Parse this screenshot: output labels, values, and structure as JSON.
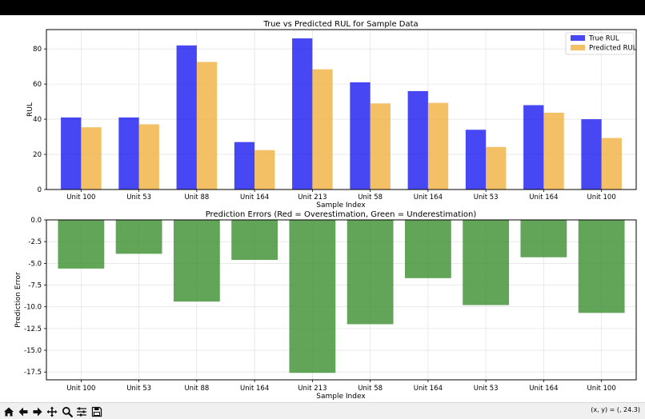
{
  "toolbar": {
    "icons": [
      "home-icon",
      "back-arrow-icon",
      "forward-arrow-icon",
      "pan-icon",
      "zoom-icon",
      "configure-subplots-icon",
      "save-icon"
    ],
    "coords_readout": "(x, y) = (, 24.3)"
  },
  "chart_data": [
    {
      "type": "bar",
      "title": "True vs Predicted RUL for Sample Data",
      "xlabel": "Sample Index",
      "ylabel": "RUL",
      "categories": [
        "Unit 100",
        "Unit 53",
        "Unit 88",
        "Unit 164",
        "Unit 213",
        "Unit 58",
        "Unit 164",
        "Unit 53",
        "Unit 164",
        "Unit 100"
      ],
      "series": [
        {
          "name": "True RUL",
          "color": "#0000ee",
          "values": [
            41,
            41,
            82,
            27,
            86,
            61,
            56,
            34,
            48,
            40
          ]
        },
        {
          "name": "Predicted RUL",
          "color": "#f0b040",
          "values": [
            35.4,
            37.1,
            72.6,
            22.4,
            68.4,
            49.0,
            49.3,
            24.2,
            43.7,
            29.3
          ]
        }
      ],
      "ylim": [
        0,
        91
      ],
      "yticks": [
        0,
        20,
        40,
        60,
        80
      ],
      "grid": true,
      "legend": "top-right"
    },
    {
      "type": "bar",
      "title": "Prediction Errors (Red = Overestimation, Green = Underestimation)",
      "xlabel": "Sample Index",
      "ylabel": "Prediction Error",
      "categories": [
        "Unit 100",
        "Unit 53",
        "Unit 88",
        "Unit 164",
        "Unit 213",
        "Unit 58",
        "Unit 164",
        "Unit 53",
        "Unit 164",
        "Unit 100"
      ],
      "series": [
        {
          "color": "#3b8f2e",
          "values": [
            -5.6,
            -3.9,
            -9.4,
            -4.6,
            -17.6,
            -12.0,
            -6.7,
            -9.8,
            -4.3,
            -10.7
          ]
        }
      ],
      "ylim": [
        -18.4,
        0
      ],
      "yticks": [
        0.0,
        -2.5,
        -5.0,
        -7.5,
        -10.0,
        -12.5,
        -15.0,
        -17.5
      ],
      "grid": true
    }
  ]
}
